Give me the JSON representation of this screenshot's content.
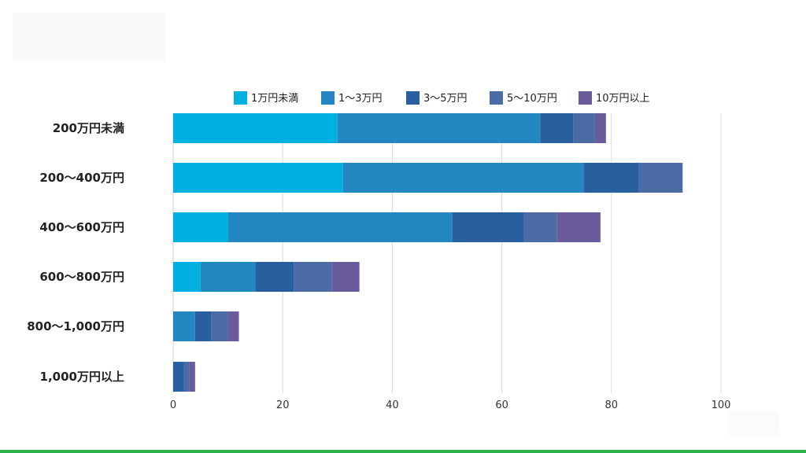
{
  "chart_data": {
    "type": "bar",
    "orientation": "horizontal",
    "stacked": true,
    "title": "",
    "xlabel": "",
    "ylabel": "",
    "xlim": [
      0,
      100
    ],
    "xticks": [
      0,
      20,
      40,
      60,
      80,
      100
    ],
    "grid": true,
    "legend_position": "top",
    "categories": [
      "200万円未満",
      "200～400万円",
      "400～600万円",
      "600～800万円",
      "800～1,000万円",
      "1,000万円以上"
    ],
    "series": [
      {
        "name": "1万円未満",
        "color": "#00b0e0",
        "values": [
          30,
          31,
          10,
          5,
          0,
          0
        ]
      },
      {
        "name": "1～3万円",
        "color": "#2587c1",
        "values": [
          37,
          44,
          41,
          10,
          4,
          0
        ]
      },
      {
        "name": "3～5万円",
        "color": "#295f9f",
        "values": [
          6,
          10,
          13,
          7,
          3,
          2
        ]
      },
      {
        "name": "5～10万円",
        "color": "#4a6ba3",
        "values": [
          4,
          8,
          6,
          7,
          3,
          1
        ]
      },
      {
        "name": "10万円以上",
        "color": "#6a5b9c",
        "values": [
          2,
          0,
          8,
          5,
          2,
          1
        ]
      }
    ]
  }
}
